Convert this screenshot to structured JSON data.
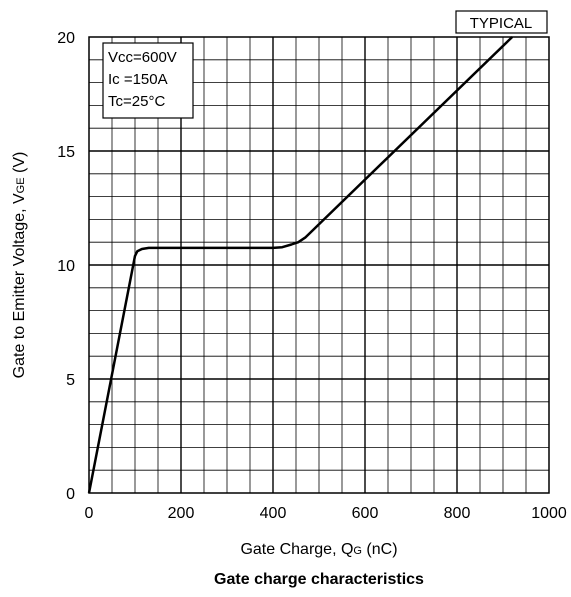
{
  "chart_data": {
    "type": "line",
    "title": "Gate charge characteristics",
    "xlabel": "Gate Charge, Q",
    "xlabel_sub": "G",
    "xlabel_unit": " (nC)",
    "ylabel": "Gate to Emitter Voltage, V",
    "ylabel_sub": "GE",
    "ylabel_unit": " (V)",
    "xlim": [
      0,
      1000
    ],
    "ylim": [
      0,
      20
    ],
    "x_ticks": [
      "0",
      "200",
      "400",
      "600",
      "800",
      "1000"
    ],
    "y_ticks": [
      "0",
      "5",
      "10",
      "15",
      "20"
    ],
    "grid": true,
    "badge": "TYPICAL",
    "conditions": [
      "Vcc=600V",
      "Ic =150A",
      "Tc=25°C"
    ],
    "series": [
      {
        "x": [
          0,
          100,
          105,
          115,
          130,
          150,
          400,
          420,
          440,
          455,
          470,
          920
        ],
        "y": [
          0,
          10.4,
          10.6,
          10.7,
          10.75,
          10.75,
          10.75,
          10.78,
          10.9,
          11.0,
          11.2,
          20.0
        ]
      }
    ]
  }
}
